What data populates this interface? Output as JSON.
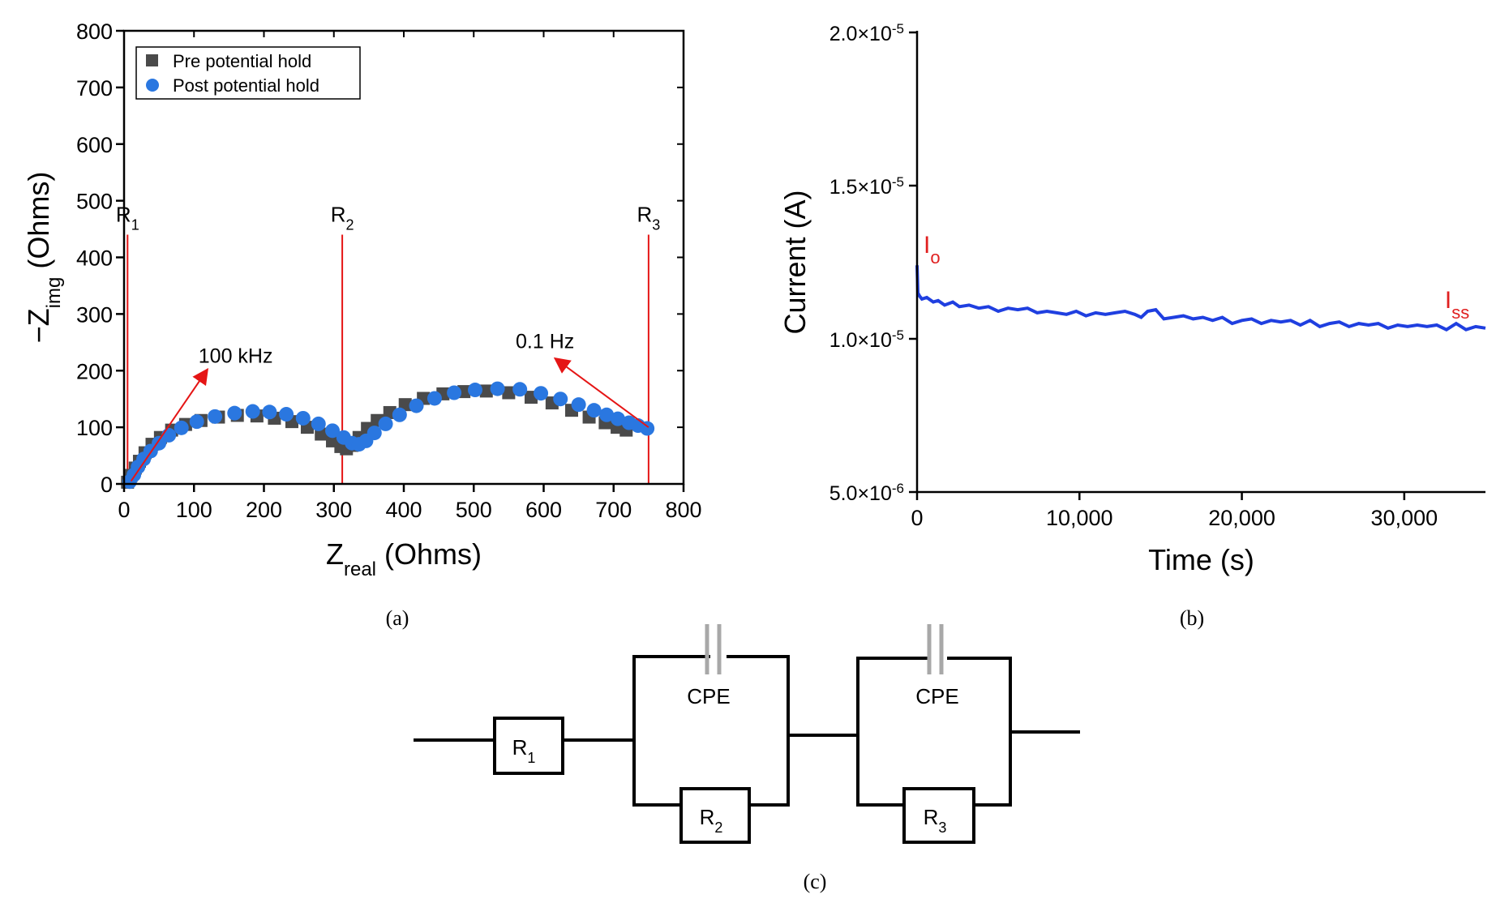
{
  "chart_data": [
    {
      "id": "a",
      "type": "scatter",
      "caption": "(a)",
      "xlabel": "Z",
      "xlabel_sub": "real",
      "xlabel_unit": " (Ohms)",
      "ylabel": "−Z",
      "ylabel_sub": "img",
      "ylabel_unit": " (Ohms)",
      "xlim": [
        0,
        800
      ],
      "ylim": [
        0,
        800
      ],
      "xticks": [
        0,
        100,
        200,
        300,
        400,
        500,
        600,
        700,
        800
      ],
      "yticks": [
        0,
        100,
        200,
        300,
        400,
        500,
        600,
        700,
        800
      ],
      "legend": {
        "position": "top-left",
        "entries": [
          "Pre potential hold",
          "Post potential hold"
        ]
      },
      "series": [
        {
          "name": "Pre potential hold",
          "marker": "square",
          "color": "#4a4a4a",
          "x": [
            5,
            10,
            16,
            22,
            30,
            40,
            52,
            68,
            88,
            110,
            135,
            162,
            190,
            215,
            240,
            262,
            282,
            298,
            310,
            318,
            326,
            336,
            348,
            362,
            380,
            402,
            428,
            456,
            486,
            518,
            550,
            582,
            612,
            640,
            665,
            688,
            705,
            718
          ],
          "y": [
            3,
            15,
            28,
            40,
            55,
            70,
            82,
            95,
            105,
            112,
            118,
            121,
            120,
            116,
            110,
            100,
            88,
            76,
            66,
            62,
            68,
            82,
            98,
            112,
            126,
            140,
            151,
            159,
            163,
            164,
            161,
            153,
            143,
            130,
            118,
            108,
            100,
            95
          ]
        },
        {
          "name": "Post potential hold",
          "marker": "circle",
          "color": "#2a77e0",
          "x": [
            8,
            14,
            20,
            28,
            38,
            50,
            64,
            82,
            104,
            130,
            158,
            184,
            208,
            232,
            256,
            278,
            298,
            314,
            326,
            336,
            346,
            358,
            374,
            394,
            418,
            444,
            472,
            502,
            534,
            566,
            596,
            624,
            650,
            672,
            690,
            706,
            722,
            735,
            748
          ],
          "y": [
            4,
            16,
            30,
            44,
            58,
            72,
            86,
            99,
            110,
            119,
            125,
            128,
            127,
            123,
            116,
            106,
            94,
            82,
            72,
            70,
            76,
            90,
            106,
            122,
            138,
            151,
            161,
            166,
            168,
            167,
            160,
            150,
            140,
            130,
            122,
            115,
            108,
            103,
            98
          ]
        }
      ],
      "reference_lines": [
        {
          "label": "R",
          "sub": "1",
          "x": 5,
          "y_top": 440
        },
        {
          "label": "R",
          "sub": "2",
          "x": 312,
          "y_top": 440
        },
        {
          "label": "R",
          "sub": "3",
          "x": 750,
          "y_top": 440
        }
      ],
      "annotations": [
        {
          "text": "100 kHz",
          "from": [
            10,
            5
          ],
          "to": [
            118,
            200
          ]
        },
        {
          "text": "0.1 Hz",
          "from": [
            750,
            100
          ],
          "to": [
            618,
            220
          ]
        }
      ]
    },
    {
      "id": "b",
      "type": "line",
      "caption": "(b)",
      "xlabel": "Time (s)",
      "ylabel": "Current (A)",
      "xlim": [
        0,
        35000
      ],
      "ylim": [
        5e-06,
        2e-05
      ],
      "xticks": [
        0,
        10000,
        20000,
        30000
      ],
      "xtick_labels": [
        "0",
        "10,000",
        "20,000",
        "30,000"
      ],
      "yticks": [
        5e-06,
        1e-05,
        1.5e-05,
        2e-05
      ],
      "ytick_mantissa": [
        "5.0",
        "1.0",
        "1.5",
        "2.0"
      ],
      "ytick_exponent": [
        "-6",
        "-5",
        "-5",
        "-5"
      ],
      "line_color": "#1f3fe0",
      "series": [
        {
          "name": "Current",
          "x": [
            0,
            50,
            150,
            300,
            600,
            1000,
            1300,
            1700,
            2200,
            2600,
            3200,
            3800,
            4400,
            5000,
            5600,
            6200,
            6800,
            7400,
            8000,
            8600,
            9200,
            9800,
            10400,
            11000,
            11600,
            12200,
            12800,
            13400,
            13800,
            14200,
            14700,
            15200,
            15800,
            16400,
            17000,
            17600,
            18200,
            18800,
            19400,
            20000,
            20600,
            21200,
            21800,
            22400,
            23000,
            23600,
            24200,
            24800,
            25400,
            26000,
            26600,
            27200,
            27800,
            28400,
            29000,
            29600,
            30200,
            30800,
            31400,
            32000,
            32600,
            33200,
            33800,
            34400,
            35000
          ],
          "y": [
            1.24e-05,
            1.15e-05,
            1.14e-05,
            1.13e-05,
            1.135e-05,
            1.12e-05,
            1.125e-05,
            1.11e-05,
            1.12e-05,
            1.105e-05,
            1.11e-05,
            1.1e-05,
            1.105e-05,
            1.09e-05,
            1.1e-05,
            1.095e-05,
            1.1e-05,
            1.085e-05,
            1.09e-05,
            1.085e-05,
            1.08e-05,
            1.09e-05,
            1.075e-05,
            1.085e-05,
            1.08e-05,
            1.085e-05,
            1.09e-05,
            1.08e-05,
            1.07e-05,
            1.09e-05,
            1.095e-05,
            1.065e-05,
            1.07e-05,
            1.075e-05,
            1.065e-05,
            1.07e-05,
            1.06e-05,
            1.07e-05,
            1.05e-05,
            1.06e-05,
            1.065e-05,
            1.05e-05,
            1.06e-05,
            1.055e-05,
            1.06e-05,
            1.045e-05,
            1.06e-05,
            1.04e-05,
            1.05e-05,
            1.055e-05,
            1.04e-05,
            1.05e-05,
            1.045e-05,
            1.05e-05,
            1.035e-05,
            1.045e-05,
            1.04e-05,
            1.045e-05,
            1.04e-05,
            1.045e-05,
            1.03e-05,
            1.05e-05,
            1.03e-05,
            1.04e-05,
            1.035e-05
          ]
        }
      ],
      "annotations": [
        {
          "text": "I",
          "sub": "o",
          "x": 400,
          "y": 1.28e-05,
          "color": "#e02020"
        },
        {
          "text": "I",
          "sub": "ss",
          "x": 32500,
          "y": 1.1e-05,
          "color": "#e02020"
        }
      ]
    },
    {
      "id": "c",
      "type": "diagram",
      "caption": "(c)",
      "components": [
        "R",
        "CPE",
        "R",
        "CPE",
        "R"
      ],
      "resistor_labels": [
        {
          "label": "R",
          "sub": "1"
        },
        {
          "label": "R",
          "sub": "2"
        },
        {
          "label": "R",
          "sub": "3"
        }
      ],
      "cpe_labels": [
        "CPE",
        "CPE"
      ]
    }
  ]
}
